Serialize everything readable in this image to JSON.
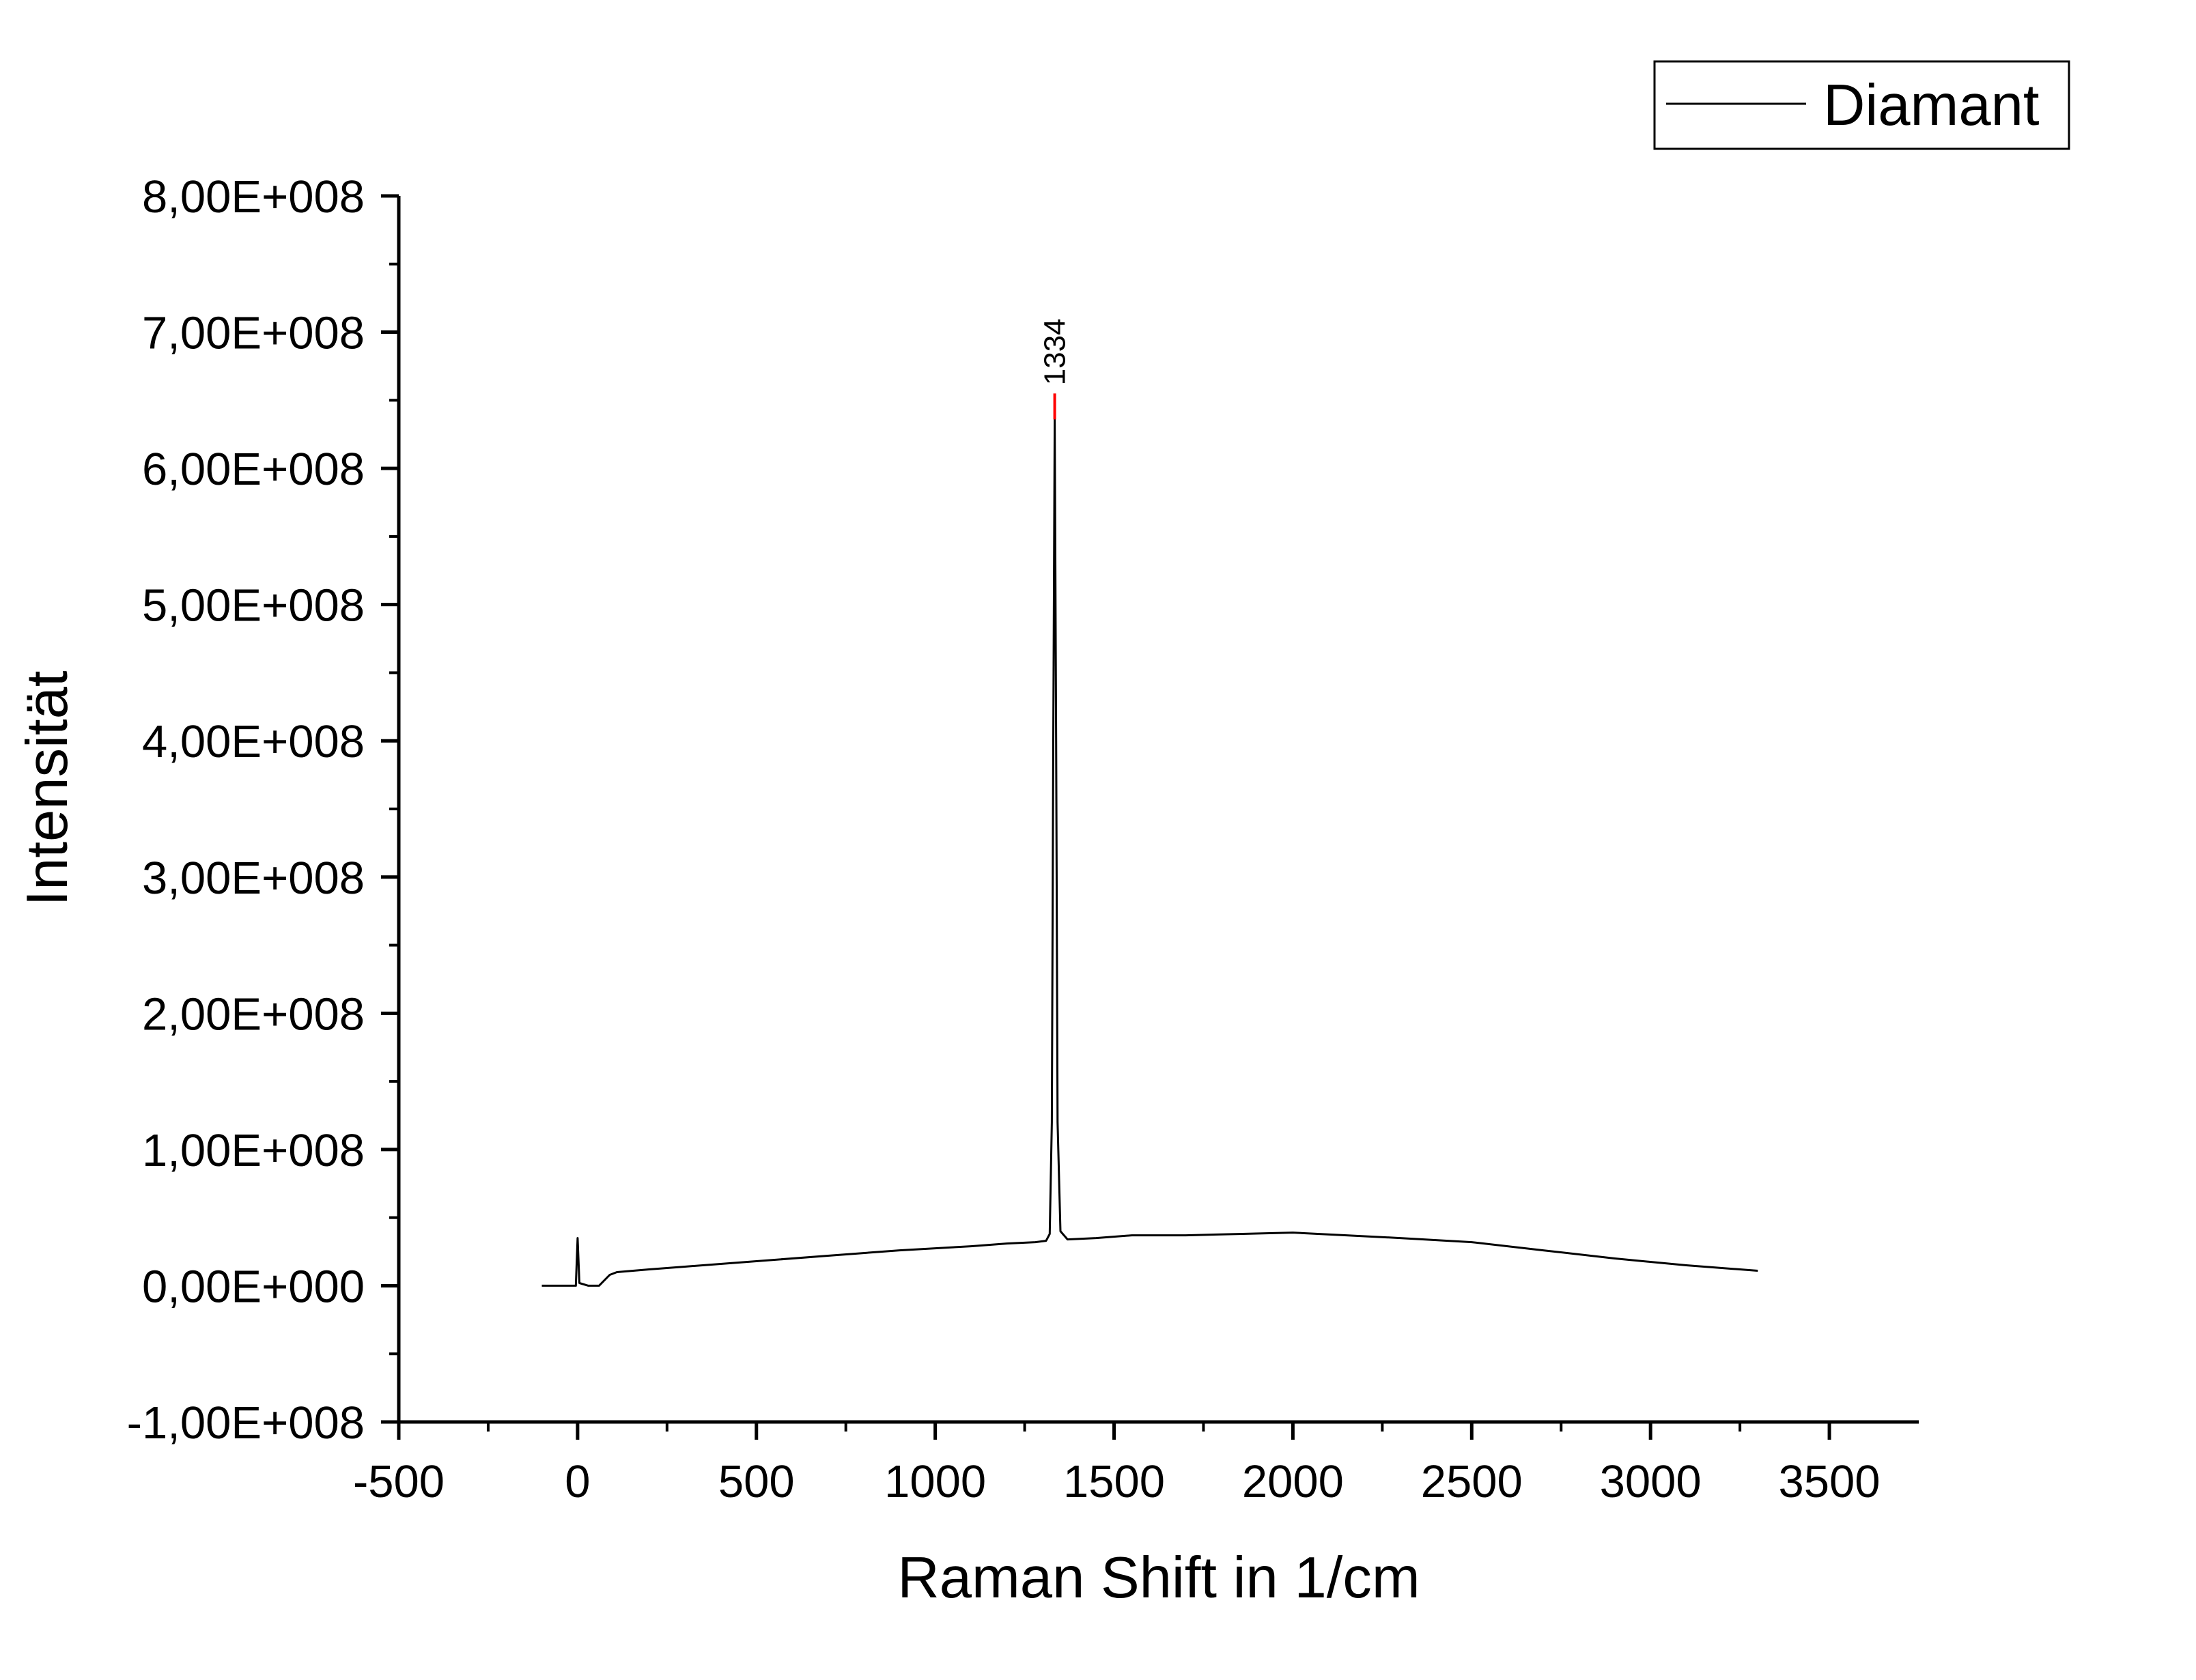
{
  "chart_data": {
    "type": "line",
    "xlabel": "Raman Shift in 1/cm",
    "ylabel": "Intensität",
    "xlim": [
      -500,
      3750
    ],
    "ylim": [
      -100000000,
      800000000
    ],
    "x_ticks": [
      -500,
      0,
      500,
      1000,
      1500,
      2000,
      2500,
      3000,
      3500
    ],
    "x_tick_labels": [
      "-500",
      "0",
      "500",
      "1000",
      "1500",
      "2000",
      "2500",
      "3000",
      "3500"
    ],
    "y_ticks": [
      -100000000,
      0,
      100000000,
      200000000,
      300000000,
      400000000,
      500000000,
      600000000,
      700000000,
      800000000
    ],
    "y_tick_labels": [
      "-1,00E+008",
      "0,00E+000",
      "1,00E+008",
      "2,00E+008",
      "3,00E+008",
      "4,00E+008",
      "5,00E+008",
      "6,00E+008",
      "7,00E+008",
      "8,00E+008"
    ],
    "grid": false,
    "legend_position": "top-right",
    "series": [
      {
        "name": "Diamant",
        "color": "#000000",
        "x": [
          -100,
          -40,
          -5,
          0,
          5,
          30,
          60,
          90,
          110,
          200,
          300,
          500,
          700,
          900,
          1100,
          1200,
          1280,
          1310,
          1320,
          1326,
          1330,
          1334,
          1338,
          1342,
          1350,
          1370,
          1450,
          1550,
          1700,
          1850,
          2000,
          2150,
          2300,
          2500,
          2700,
          2900,
          3100,
          3300
        ],
        "y": [
          0,
          0,
          0,
          35000000,
          2000000,
          0,
          0,
          8000000,
          10000000,
          12000000,
          14000000,
          18000000,
          22000000,
          26000000,
          29000000,
          31000000,
          32000000,
          33000000,
          38000000,
          120000000,
          400000000,
          636000000,
          400000000,
          120000000,
          40000000,
          34000000,
          35000000,
          37000000,
          37000000,
          38000000,
          39000000,
          37000000,
          35000000,
          32000000,
          26000000,
          20000000,
          15000000,
          11000000
        ]
      }
    ],
    "annotations": [
      {
        "text": "1334",
        "x": 1334,
        "y": 655000000,
        "marker_color": "#ff0000"
      }
    ]
  }
}
